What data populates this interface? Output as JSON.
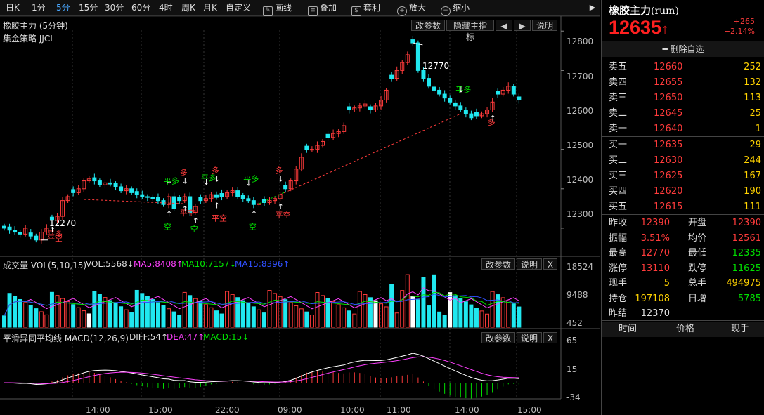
{
  "toolbar": {
    "periods": [
      "日K",
      "1分",
      "5分",
      "15分",
      "30分",
      "60分",
      "4时",
      "周K",
      "月K",
      "自定义"
    ],
    "active_period": "5分",
    "tools": [
      {
        "icon": "pen-icon",
        "label": "画线"
      },
      {
        "icon": "layers-icon",
        "label": "叠加"
      },
      {
        "icon": "money-bag-icon",
        "label": "套利"
      },
      {
        "icon": "zoom-in-icon",
        "label": "放大"
      },
      {
        "icon": "zoom-out-icon",
        "label": "缩小"
      }
    ]
  },
  "main_chart": {
    "title": "橡胶主力 (5分钟)",
    "strategy": "集金策略 JJCL",
    "buttons": {
      "params": "改参数",
      "hide": "隐藏主指标",
      "prev": "◀",
      "next": "▶",
      "help": "说明"
    },
    "y_ticks": [
      "12800",
      "12700",
      "12600",
      "12500",
      "12400",
      "12300"
    ],
    "y_tick_values": [
      12800,
      12700,
      12600,
      12500,
      12400,
      12300
    ],
    "high_label": "12770",
    "low_label": "12270",
    "signals": [
      {
        "text": "平多",
        "color": "#ff3b3b",
        "i": 9
      },
      {
        "text": "平空",
        "color": "#ff3b3b",
        "i": 9
      },
      {
        "text": "平多",
        "color": "#00e000",
        "i": 31
      },
      {
        "text": "多",
        "color": "#ff3b3b",
        "i": 34
      },
      {
        "text": "平多",
        "color": "#00e000",
        "i": 38
      },
      {
        "text": "空",
        "color": "#00e000",
        "i": 31
      },
      {
        "text": "平空",
        "color": "#ff3b3b",
        "i": 34
      },
      {
        "text": "空",
        "color": "#00e000",
        "i": 36
      },
      {
        "text": "平空",
        "color": "#ff3b3b",
        "i": 40
      },
      {
        "text": "多",
        "color": "#ff3b3b",
        "i": 40
      },
      {
        "text": "平多",
        "color": "#00e000",
        "i": 46
      },
      {
        "text": "空",
        "color": "#00e000",
        "i": 47
      },
      {
        "text": "多",
        "color": "#ff3b3b",
        "i": 52
      },
      {
        "text": "平空",
        "color": "#ff3b3b",
        "i": 52
      },
      {
        "text": "平多",
        "color": "#00e000",
        "i": 86
      },
      {
        "text": "多",
        "color": "#ff3b3b",
        "i": 92
      }
    ]
  },
  "volume_chart": {
    "title": "成交量 VOL(5,10,15)",
    "vol": "VOL:5568↓",
    "ma5": "MA5:8408↑",
    "ma10": "MA10:7157↓",
    "ma15": "MA15:8396↑",
    "buttons": {
      "params": "改参数",
      "help": "说明",
      "close": "X"
    },
    "y_ticks": [
      "18524",
      "9488",
      "452"
    ]
  },
  "macd_chart": {
    "title": "平滑异同平均线 MACD(12,26,9)",
    "diff": "DIFF:54↑",
    "dea": "DEA:47↑",
    "macd": "MACD:15↓",
    "buttons": {
      "params": "改参数",
      "help": "说明",
      "close": "X"
    },
    "y_ticks": [
      "65",
      "15",
      "-34"
    ]
  },
  "x_axis": [
    "14:00",
    "15:00",
    "22:00",
    "09:00",
    "10:00",
    "11:00",
    "14:00",
    "15:00"
  ],
  "colors": {
    "up": "#ff3b3b",
    "down": "#20e8f0",
    "ma5": "#ff40ff",
    "ma10": "#00e000",
    "ma15": "#3050ff",
    "dif": "#ffffff",
    "dea": "#ff40ff",
    "cond_line": "#ff3b3b"
  },
  "chart_data": {
    "type": "candlestick",
    "symbol": "橡胶主力",
    "interval": "5分钟",
    "y_range": [
      12250,
      12820
    ],
    "close": [
      12300,
      12295,
      12290,
      12285,
      12300,
      12280,
      12270,
      12290,
      12300,
      12320,
      12330,
      12370,
      12380,
      12390,
      12400,
      12420,
      12425,
      12420,
      12410,
      12415,
      12412,
      12405,
      12395,
      12400,
      12390,
      12385,
      12380,
      12378,
      12375,
      12370,
      12360,
      12380,
      12350,
      12370,
      12380,
      12340,
      12355,
      12370,
      12375,
      12385,
      12378,
      12380,
      12390,
      12395,
      12380,
      12375,
      12370,
      12360,
      12362,
      12365,
      12370,
      12375,
      12385,
      12400,
      12420,
      12450,
      12480,
      12500,
      12500,
      12510,
      12520,
      12530,
      12540,
      12545,
      12560,
      12600,
      12605,
      12610,
      12615,
      12600,
      12610,
      12625,
      12650,
      12680,
      12700,
      12720,
      12740,
      12770,
      12700,
      12680,
      12660,
      12650,
      12640,
      12630,
      12620,
      12610,
      12600,
      12590,
      12580,
      12585,
      12590,
      12600,
      12620,
      12640,
      12650,
      12660,
      12640,
      12625
    ],
    "volume_hint": "bars shown, values read approximately",
    "last_price": 12635
  },
  "right_panel": {
    "name": "橡胶主力",
    "code": "(rum)",
    "price": "12635",
    "arrow": "↑",
    "change": "+265",
    "change_pct": "+2.14%",
    "remove_label": "删除自选",
    "asks": [
      {
        "k": "卖五",
        "p": "12660",
        "q": "252"
      },
      {
        "k": "卖四",
        "p": "12655",
        "q": "132"
      },
      {
        "k": "卖三",
        "p": "12650",
        "q": "113"
      },
      {
        "k": "卖二",
        "p": "12645",
        "q": "25"
      },
      {
        "k": "卖一",
        "p": "12640",
        "q": "1"
      }
    ],
    "bids": [
      {
        "k": "买一",
        "p": "12635",
        "q": "29"
      },
      {
        "k": "买二",
        "p": "12630",
        "q": "244"
      },
      {
        "k": "买三",
        "p": "12625",
        "q": "167"
      },
      {
        "k": "买四",
        "p": "12620",
        "q": "190"
      },
      {
        "k": "买五",
        "p": "12615",
        "q": "111"
      }
    ],
    "stats": [
      {
        "k1": "昨收",
        "v1": "12390",
        "k2": "开盘",
        "v2": "12390",
        "c1": "#ff3b3b",
        "c2": "#ff3b3b"
      },
      {
        "k1": "振幅",
        "v1": "3.51%",
        "k2": "均价",
        "v2": "12561",
        "c1": "#ff3b3b",
        "c2": "#ff3b3b"
      },
      {
        "k1": "最高",
        "v1": "12770",
        "k2": "最低",
        "v2": "12335",
        "c1": "#ff3b3b",
        "c2": "#00e000"
      },
      {
        "k1": "涨停",
        "v1": "13110",
        "k2": "跌停",
        "v2": "11625",
        "c1": "#ff3b3b",
        "c2": "#00e000"
      },
      {
        "k1": "现手",
        "v1": "5",
        "k2": "总手",
        "v2": "494975",
        "c1": "#ffd200",
        "c2": "#ffd200"
      },
      {
        "k1": "持仓",
        "v1": "197108",
        "k2": "日增",
        "v2": "5785",
        "c1": "#ffd200",
        "c2": "#00e000"
      },
      {
        "k1": "昨结",
        "v1": "12370",
        "k2": "",
        "v2": "",
        "c1": "#ddd",
        "c2": "#ddd"
      }
    ],
    "footer": [
      "时间",
      "价格",
      "现手"
    ]
  }
}
